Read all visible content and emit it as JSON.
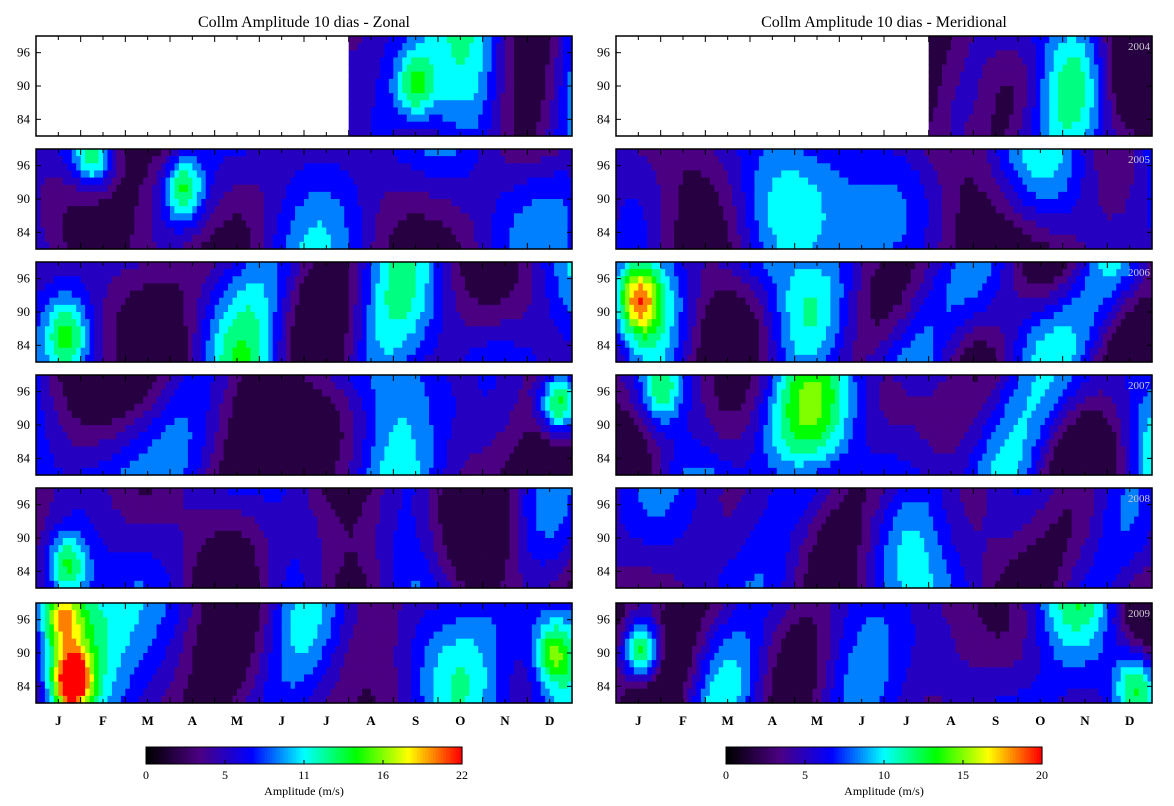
{
  "chart_data": [
    {
      "type": "heatmap",
      "title": "Collm Amplitude 10 dias - Zonal",
      "yticks": [
        "96",
        "90",
        "84"
      ],
      "yvalues": [
        96,
        90,
        84
      ],
      "ylim": [
        81,
        99
      ],
      "x_months": [
        "J",
        "F",
        "M",
        "A",
        "M",
        "J",
        "J",
        "A",
        "S",
        "O",
        "N",
        "D"
      ],
      "years": [
        "2004",
        "2005",
        "2006",
        "2007",
        "2008",
        "2009"
      ],
      "year_labels_shown": false,
      "data_start_2004": "2004-08-01",
      "colorbar": {
        "label": "Amplitude (m/s)",
        "ticks": [
          "0",
          "5",
          "11",
          "16",
          "22"
        ],
        "range": [
          0,
          22
        ]
      },
      "colormap": [
        "#000000",
        "#4b0082",
        "#0000ff",
        "#00ffff",
        "#00ff00",
        "#ffff00",
        "#ff0000"
      ],
      "hotspots": [
        {
          "year": "2004",
          "month": 8.5,
          "height": 90,
          "amplitude": 14
        },
        {
          "year": "2005",
          "month": 1.3,
          "height": 97,
          "amplitude": 15
        },
        {
          "year": "2005",
          "month": 3.3,
          "height": 92,
          "amplitude": 15
        },
        {
          "year": "2006",
          "month": 0.7,
          "height": 86,
          "amplitude": 13
        },
        {
          "year": "2007",
          "month": 11.7,
          "height": 94,
          "amplitude": 19
        },
        {
          "year": "2008",
          "month": 0.7,
          "height": 85,
          "amplitude": 15
        },
        {
          "year": "2009",
          "month": 0.8,
          "height": 85,
          "amplitude": 22
        },
        {
          "year": "2009",
          "month": 0.6,
          "height": 97,
          "amplitude": 17
        },
        {
          "year": "2009",
          "month": 11.6,
          "height": 90,
          "amplitude": 16
        }
      ]
    },
    {
      "type": "heatmap",
      "title": "Collm Amplitude 10 dias - Meridional",
      "yticks": [
        "96",
        "90",
        "84"
      ],
      "yvalues": [
        96,
        90,
        84
      ],
      "ylim": [
        81,
        99
      ],
      "x_months": [
        "J",
        "F",
        "M",
        "A",
        "M",
        "J",
        "J",
        "A",
        "S",
        "O",
        "N",
        "D"
      ],
      "years": [
        "2004",
        "2005",
        "2006",
        "2007",
        "2008",
        "2009"
      ],
      "year_labels_shown": true,
      "data_start_2004": "2004-08-01",
      "colorbar": {
        "label": "Amplitude (m/s)",
        "ticks": [
          "0",
          "5",
          "10",
          "15",
          "20"
        ],
        "range": [
          0,
          20
        ]
      },
      "colormap": [
        "#000000",
        "#4b0082",
        "#0000ff",
        "#00ffff",
        "#00ff00",
        "#ffff00",
        "#ff0000"
      ],
      "hotspots": [
        {
          "year": "2006",
          "month": 0.5,
          "height": 92,
          "amplitude": 16
        },
        {
          "year": "2007",
          "month": 1.0,
          "height": 96,
          "amplitude": 12
        },
        {
          "year": "2009",
          "month": 0.6,
          "height": 90,
          "amplitude": 20
        },
        {
          "year": "2009",
          "month": 11.6,
          "height": 85,
          "amplitude": 12
        }
      ]
    }
  ]
}
